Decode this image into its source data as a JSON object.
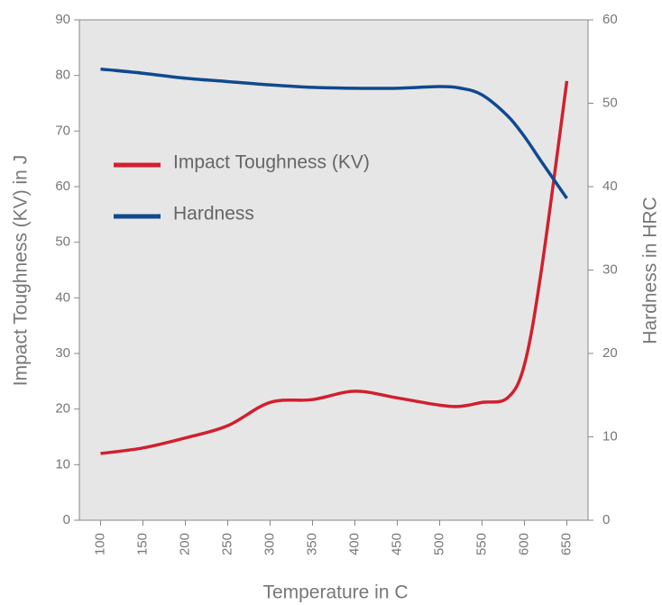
{
  "chart_data": {
    "type": "line",
    "xlabel": "Temperature in  C",
    "ylabel": "Impact Toughness (KV) in J",
    "y2label": "Hardness in HRC",
    "x": [
      100,
      150,
      200,
      250,
      300,
      350,
      400,
      450,
      500,
      525,
      550,
      580,
      600,
      620,
      650
    ],
    "series": [
      {
        "name": "Impact Toughness (KV)",
        "color": "#d0202e",
        "values": [
          12,
          13,
          14.8,
          17,
          21.2,
          21.7,
          23.2,
          22,
          20.7,
          20.5,
          21.2,
          22,
          28,
          45,
          79
        ]
      },
      {
        "name": "Hardness",
        "color": "#10498f",
        "axis": "y2",
        "values": [
          54.1,
          53.6,
          53,
          52.6,
          52.2,
          51.9,
          51.8,
          51.8,
          52,
          51.8,
          51,
          48.5,
          46,
          43,
          38.6
        ]
      }
    ],
    "xlim": [
      75,
      675
    ],
    "xticks": [
      100,
      150,
      200,
      250,
      300,
      350,
      400,
      450,
      500,
      550,
      600,
      650
    ],
    "ylim": [
      0,
      90
    ],
    "yticks": [
      0,
      10,
      20,
      30,
      40,
      50,
      60,
      70,
      80,
      90
    ],
    "y2lim": [
      0,
      60
    ],
    "y2ticks": [
      0,
      10,
      20,
      30,
      40,
      50,
      60
    ],
    "legend": "left"
  }
}
